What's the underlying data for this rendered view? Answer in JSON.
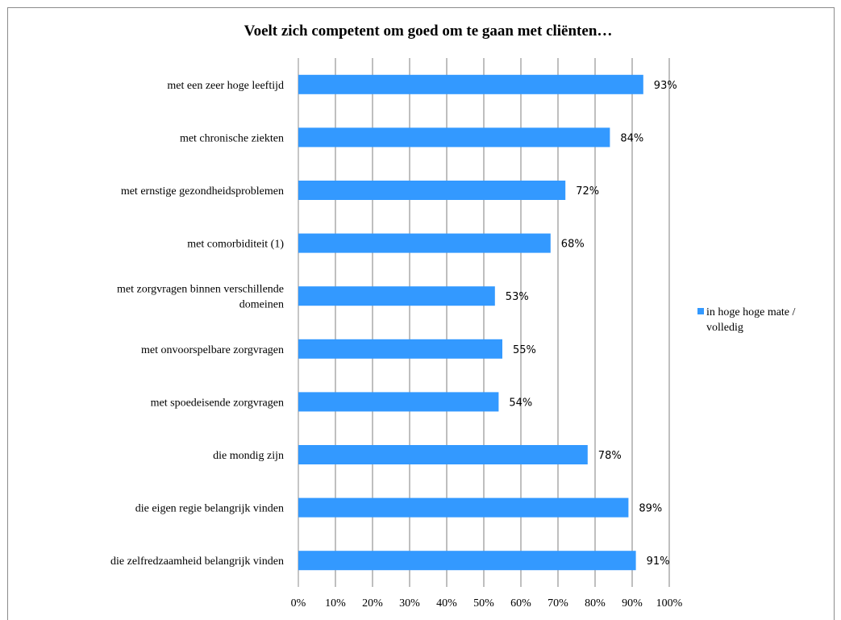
{
  "colors": {
    "bar": "#3399ff",
    "grid": "#7f7f7f",
    "axis": "#8c8c8c"
  },
  "chart_data": {
    "type": "bar",
    "orientation": "horizontal",
    "title": "Voelt zich competent om goed om te gaan met cliënten…",
    "categories": [
      "met een zeer hoge leeftijd",
      "met chronische ziekten",
      "met ernstige gezondheidsproblemen",
      "met comorbiditeit (1)",
      "met zorgvragen binnen verschillende domeinen",
      "met onvoorspelbare zorgvragen",
      "met spoedeisende zorgvragen",
      "die mondig zijn",
      "die eigen regie belangrijk vinden",
      "die zelfredzaamheid belangrijk vinden"
    ],
    "category_lines": [
      [
        "met een zeer hoge leeftijd"
      ],
      [
        "met chronische ziekten"
      ],
      [
        "met ernstige gezondheidsproblemen"
      ],
      [
        "met comorbiditeit (1)"
      ],
      [
        "met zorgvragen binnen verschillende",
        "domeinen"
      ],
      [
        "met onvoorspelbare zorgvragen"
      ],
      [
        "met spoedeisende zorgvragen"
      ],
      [
        "die mondig zijn"
      ],
      [
        "die eigen regie belangrijk vinden"
      ],
      [
        "die zelfredzaamheid belangrijk vinden"
      ]
    ],
    "series": [
      {
        "name": "in hoge hoge mate / volledig",
        "values": [
          93,
          84,
          72,
          68,
          53,
          55,
          54,
          78,
          89,
          91
        ],
        "value_labels": [
          "93%",
          "84%",
          "72%",
          "68%",
          "53%",
          "55%",
          "54%",
          "78%",
          "89%",
          "91%"
        ]
      }
    ],
    "xlim": [
      0,
      100
    ],
    "x_ticks": [
      0,
      10,
      20,
      30,
      40,
      50,
      60,
      70,
      80,
      90,
      100
    ],
    "x_tick_labels": [
      "0%",
      "10%",
      "20%",
      "30%",
      "40%",
      "50%",
      "60%",
      "70%",
      "80%",
      "90%",
      "100%"
    ],
    "grid": true,
    "legend": {
      "position": "right",
      "lines": [
        "in hoge hoge mate /",
        "volledig"
      ]
    }
  }
}
